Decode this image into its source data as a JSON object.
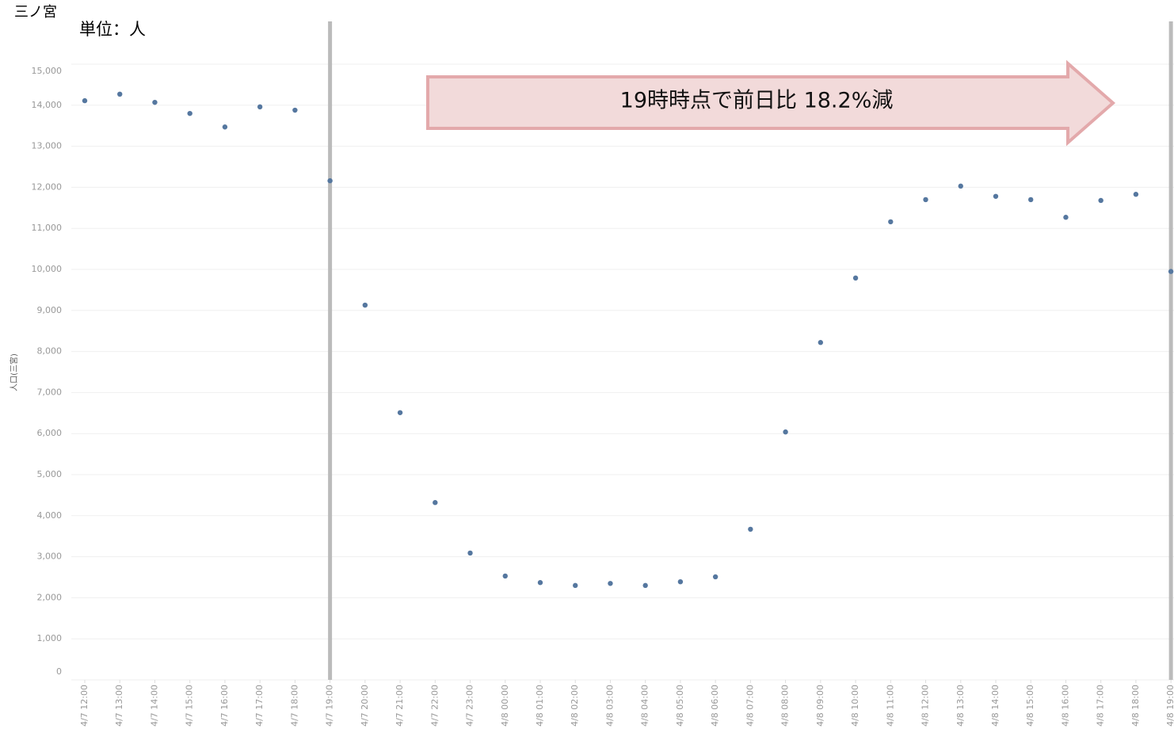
{
  "chart_data": {
    "type": "line",
    "title": "三ノ宮",
    "subtitle": "単位：人",
    "y_label": "人口(三宮)",
    "annotation": "19時時点で前日比 18.2%減",
    "categories": [
      "4/7 12:00",
      "4/7 13:00",
      "4/7 14:00",
      "4/7 15:00",
      "4/7 16:00",
      "4/7 17:00",
      "4/7 18:00",
      "4/7 19:00",
      "4/7 20:00",
      "4/7 21:00",
      "4/7 22:00",
      "4/7 23:00",
      "4/8 00:00",
      "4/8 01:00",
      "4/8 02:00",
      "4/8 03:00",
      "4/8 04:00",
      "4/8 05:00",
      "4/8 06:00",
      "4/8 07:00",
      "4/8 08:00",
      "4/8 09:00",
      "4/8 10:00",
      "4/8 11:00",
      "4/8 12:00",
      "4/8 13:00",
      "4/8 14:00",
      "4/8 15:00",
      "4/8 16:00",
      "4/8 17:00",
      "4/8 18:00",
      "4/8 19:00"
    ],
    "series": [
      {
        "name": "人口(三宮)",
        "color": "#55779f",
        "values": [
          14110,
          14270,
          14070,
          13800,
          13470,
          13960,
          13880,
          12160,
          9130,
          6510,
          4320,
          3090,
          2530,
          2370,
          2300,
          2350,
          2300,
          2390,
          2510,
          3670,
          6040,
          8220,
          9790,
          11160,
          11700,
          12030,
          11780,
          11700,
          11270,
          11680,
          11830,
          9950
        ]
      }
    ],
    "vlines": [
      "4/7 19:00",
      "4/8 19:00"
    ],
    "ylim": [
      0,
      15000
    ],
    "yticks": [
      0,
      {
        "value": 1000,
        "label": "1,000"
      },
      {
        "value": 2000,
        "label": "2,000"
      },
      {
        "value": 3000,
        "label": "3,000"
      },
      {
        "value": 4000,
        "label": "4,000"
      },
      {
        "value": 5000,
        "label": "5,000"
      },
      {
        "value": 6000,
        "label": "6,000"
      },
      {
        "value": 7000,
        "label": "7,000"
      },
      {
        "value": 8000,
        "label": "8,000"
      },
      {
        "value": 9000,
        "label": "9,000"
      },
      {
        "value": 10000,
        "label": "10,000"
      },
      {
        "value": 11000,
        "label": "11,000"
      },
      {
        "value": 12000,
        "label": "12,000"
      },
      {
        "value": 13000,
        "label": "13,000"
      },
      {
        "value": 14000,
        "label": "14,000"
      },
      {
        "value": 15000,
        "label": "15,000"
      }
    ],
    "grid": true
  }
}
